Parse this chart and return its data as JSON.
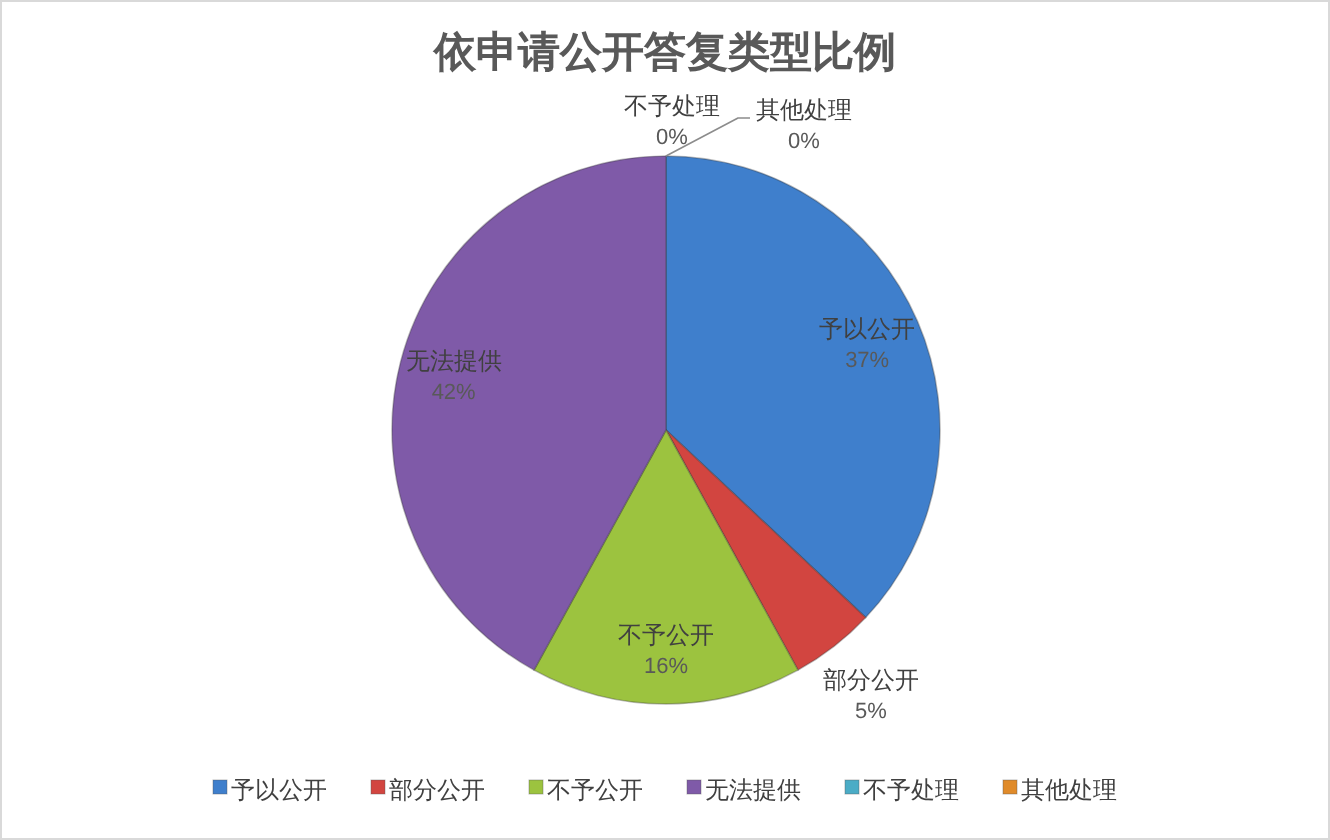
{
  "chart_data": {
    "type": "pie",
    "title": "依申请公开答复类型比例",
    "categories": [
      "予以公开",
      "部分公开",
      "不予公开",
      "无法提供",
      "不予处理",
      "其他处理"
    ],
    "values": [
      37,
      5,
      16,
      42,
      0,
      0
    ],
    "colors": [
      "#3f7fcc",
      "#d24540",
      "#9cc33f",
      "#7f5aa8",
      "#4bacc6",
      "#e08b2a"
    ],
    "value_labels": [
      "37%",
      "5%",
      "16%",
      "42%",
      "0%",
      "0%"
    ],
    "legend": "bottom"
  }
}
